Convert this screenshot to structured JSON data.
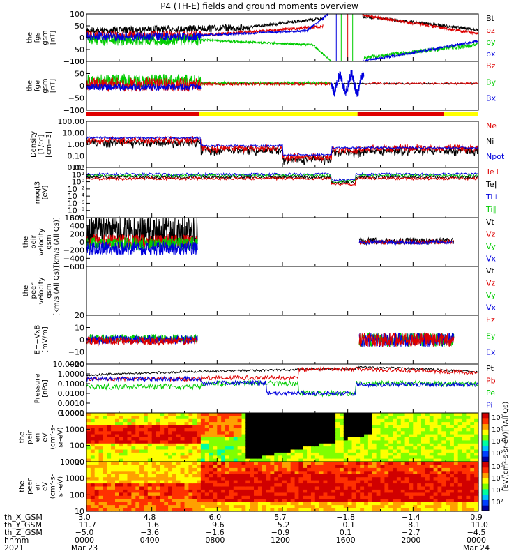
{
  "chart_data": {
    "type": "line",
    "title": "P4 (TH-E) fields and ground moments overview",
    "x_range": [
      "0000",
      "0000"
    ],
    "panels": [
      {
        "id": "fgs",
        "ylabel": [
          "the",
          "fgs",
          "gsm",
          "[nT]"
        ],
        "ylim": [
          -100,
          100
        ],
        "ticks": [
          "100",
          "50",
          "0",
          "−50",
          "−100"
        ],
        "legend": [
          {
            "name": "Bt",
            "color": "#000000"
          },
          {
            "name": "bz",
            "color": "#dd0000"
          },
          {
            "name": "by",
            "color": "#00cc00"
          },
          {
            "name": "bx",
            "color": "#0000dd"
          }
        ]
      },
      {
        "id": "fge",
        "ylabel": [
          "the",
          "fge",
          "gsm",
          "[nT]"
        ],
        "ylim": [
          -120,
          100
        ],
        "ticks": [
          "100",
          "50",
          "0",
          "−50",
          "−100"
        ],
        "legend": [
          {
            "name": "Bz",
            "color": "#dd0000"
          },
          {
            "name": "By",
            "color": "#00cc00"
          },
          {
            "name": "Bx",
            "color": "#0000dd"
          }
        ]
      },
      {
        "id": "density",
        "ylabel": [
          "Density",
          "[1/cc]",
          "[cm−3]"
        ],
        "ylim": [
          0.01,
          100
        ],
        "log": true,
        "ticks": [
          "100.00",
          "10.00",
          "1.00",
          "0.10",
          "0.01"
        ],
        "legend": [
          {
            "name": "Ne",
            "color": "#dd0000"
          },
          {
            "name": "Ni",
            "color": "#000000"
          },
          {
            "name": "Npot",
            "color": "#0000dd"
          }
        ]
      },
      {
        "id": "temp",
        "ylabel": [
          "moqt3",
          "[eV]"
        ],
        "log": true,
        "ticks": [
          "10⁴",
          "10²",
          "10⁰",
          "10⁻²",
          "10⁻⁴",
          "10⁻⁶",
          "10⁻⁸",
          "10⁻¹⁰"
        ],
        "legend": [
          {
            "name": "Te⊥",
            "color": "#dd0000"
          },
          {
            "name": "Te∥",
            "color": "#000000"
          },
          {
            "name": "Ti⊥",
            "color": "#0000dd"
          },
          {
            "name": "Ti∥",
            "color": "#00cc00"
          }
        ]
      },
      {
        "id": "peir_vel",
        "ylabel": [
          "the",
          "peir",
          "velocity",
          "gsm",
          "[km/s (All Qs)]"
        ],
        "ylim": [
          -600,
          600
        ],
        "ticks": [
          "600",
          "400",
          "200",
          "0",
          "−200",
          "−400",
          "−600"
        ],
        "legend": [
          {
            "name": "Vt",
            "color": "#000000"
          },
          {
            "name": "Vz",
            "color": "#dd0000"
          },
          {
            "name": "Vy",
            "color": "#00cc00"
          },
          {
            "name": "Vx",
            "color": "#0000dd"
          }
        ]
      },
      {
        "id": "peer_vel",
        "ylabel": [
          "the",
          "peer",
          "velocity",
          "gsm",
          "[km/s (All Qs)]"
        ],
        "ticks": [],
        "legend": [
          {
            "name": "Vt",
            "color": "#000000"
          },
          {
            "name": "Vz",
            "color": "#dd0000"
          },
          {
            "name": "Vy",
            "color": "#00cc00"
          },
          {
            "name": "Vx",
            "color": "#0000dd"
          }
        ]
      },
      {
        "id": "efield",
        "ylabel": [
          "E=−VxB",
          "[mV/m]"
        ],
        "ylim": [
          -20,
          20
        ],
        "ticks": [
          "20",
          "10",
          "0",
          "−10",
          "−20"
        ],
        "legend": [
          {
            "name": "Ez",
            "color": "#dd0000"
          },
          {
            "name": "Ey",
            "color": "#00cc00"
          },
          {
            "name": "Ex",
            "color": "#0000dd"
          }
        ]
      },
      {
        "id": "pressure",
        "ylabel": [
          "Pressure",
          "[nPa]"
        ],
        "ylim": [
          0.0001,
          10
        ],
        "log": true,
        "ticks": [
          "10.0000",
          "1.0000",
          "0.1000",
          "0.0100",
          "0.0010",
          "0.0001"
        ],
        "legend": [
          {
            "name": "Pt",
            "color": "#000000"
          },
          {
            "name": "Pb",
            "color": "#dd0000"
          },
          {
            "name": "Pe",
            "color": "#00cc00"
          },
          {
            "name": "Pi",
            "color": "#0000dd"
          }
        ]
      },
      {
        "id": "peir_spec",
        "ylabel": [
          "the",
          "peir",
          "en",
          "eV",
          "(cm²-s-",
          "sr-eV)"
        ],
        "ylim": [
          5,
          30000
        ],
        "log": true,
        "ticks": [
          "10000",
          "1000",
          "100",
          "10"
        ],
        "type": "heatmap"
      },
      {
        "id": "peer_spec",
        "ylabel": [
          "the",
          "peer",
          "en",
          "eV",
          "(cm²-s-",
          "sr-eV)"
        ],
        "ylim": [
          5,
          30000
        ],
        "log": true,
        "ticks": [
          "10000",
          "1000",
          "100",
          "10"
        ],
        "type": "heatmap"
      }
    ],
    "colorbar": {
      "ticks": [
        "10⁸",
        "10⁶",
        "10⁴",
        "10²"
      ],
      "label": "[eV/(cm²-s-sr-eV)] (All Qs)"
    },
    "ephemeris": {
      "labels": [
        "th_X_GSM",
        "th_Y_GSM",
        "th_Z_GSM",
        "hhmm",
        "2021"
      ],
      "columns": [
        {
          "v": [
            "3.0",
            "−11.7",
            "−5.0",
            "0000",
            "Mar 23"
          ]
        },
        {
          "v": [
            "4.8",
            "−1.6",
            "−3.6",
            "0400",
            ""
          ]
        },
        {
          "v": [
            "6.0",
            "−9.6",
            "−1.6",
            "0800",
            ""
          ]
        },
        {
          "v": [
            "5.7",
            "−5.2",
            "−0.9",
            "1200",
            ""
          ]
        },
        {
          "v": [
            "−1.8",
            "−0.1",
            "0.1",
            "1600",
            ""
          ]
        },
        {
          "v": [
            "−1.4",
            "−8.1",
            "−2.7",
            "2000",
            ""
          ]
        },
        {
          "v": [
            "0.9",
            "−11.0",
            "−4.5",
            "0000",
            "Mar 24"
          ]
        }
      ]
    },
    "mode_bar": [
      {
        "from": 0,
        "to": 6.9,
        "color": "#e00000"
      },
      {
        "from": 6.9,
        "to": 16.6,
        "color": "#ffff00"
      },
      {
        "from": 16.6,
        "to": 21.9,
        "color": "#e00000"
      },
      {
        "from": 21.9,
        "to": 24,
        "color": "#ffff00"
      }
    ]
  }
}
